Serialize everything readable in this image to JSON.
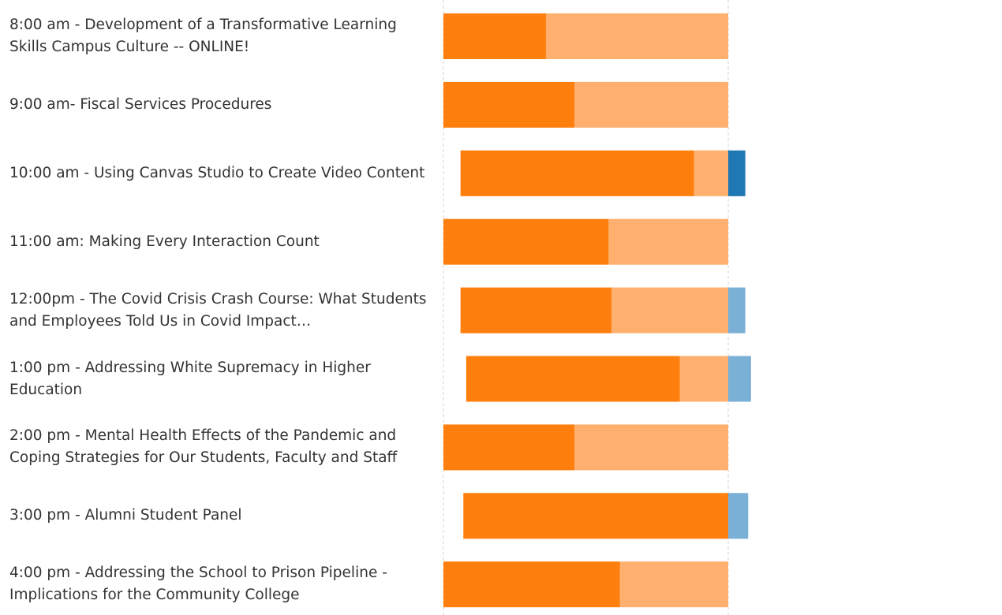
{
  "chart_data": {
    "type": "diverging_bar",
    "categories": [
      "8:00 am - Development of a Transformative Learning Skills Campus Culture -- ONLINE!",
      "9:00 am- Fiscal Services Procedures",
      "10:00 am - Using Canvas Studio to Create Video Content",
      "11:00 am: Making Every Interaction Count",
      "12:00pm - The Covid Crisis Crash Course: What Students and Employees Told Us in Covid Impact…",
      "1:00 pm - Addressing White Supremacy in Higher Education",
      "2:00 pm - Mental Health Effects of the Pandemic and Coping Strategies for Our Students, Faculty and Staff",
      "3:00 pm - Alumni Student Panel",
      "4:00 pm - Addressing the School to Prison Pipeline - Implications for the Community College"
    ],
    "series": [
      {
        "color": "#ff7f0e",
        "side": "left",
        "values": [
          36,
          46,
          82,
          58,
          53,
          75,
          46,
          93,
          62
        ]
      },
      {
        "color": "#ffb06e",
        "side": "left",
        "values": [
          64,
          54,
          12,
          42,
          41,
          17,
          54,
          0,
          38
        ]
      },
      {
        "color": "#1f77b4",
        "side": "right",
        "values": [
          0,
          0,
          6,
          0,
          0,
          0,
          0,
          0,
          0
        ]
      },
      {
        "color": "#7aafd6",
        "side": "right",
        "values": [
          0,
          0,
          0,
          0,
          6,
          8,
          0,
          7,
          0
        ]
      }
    ]
  }
}
